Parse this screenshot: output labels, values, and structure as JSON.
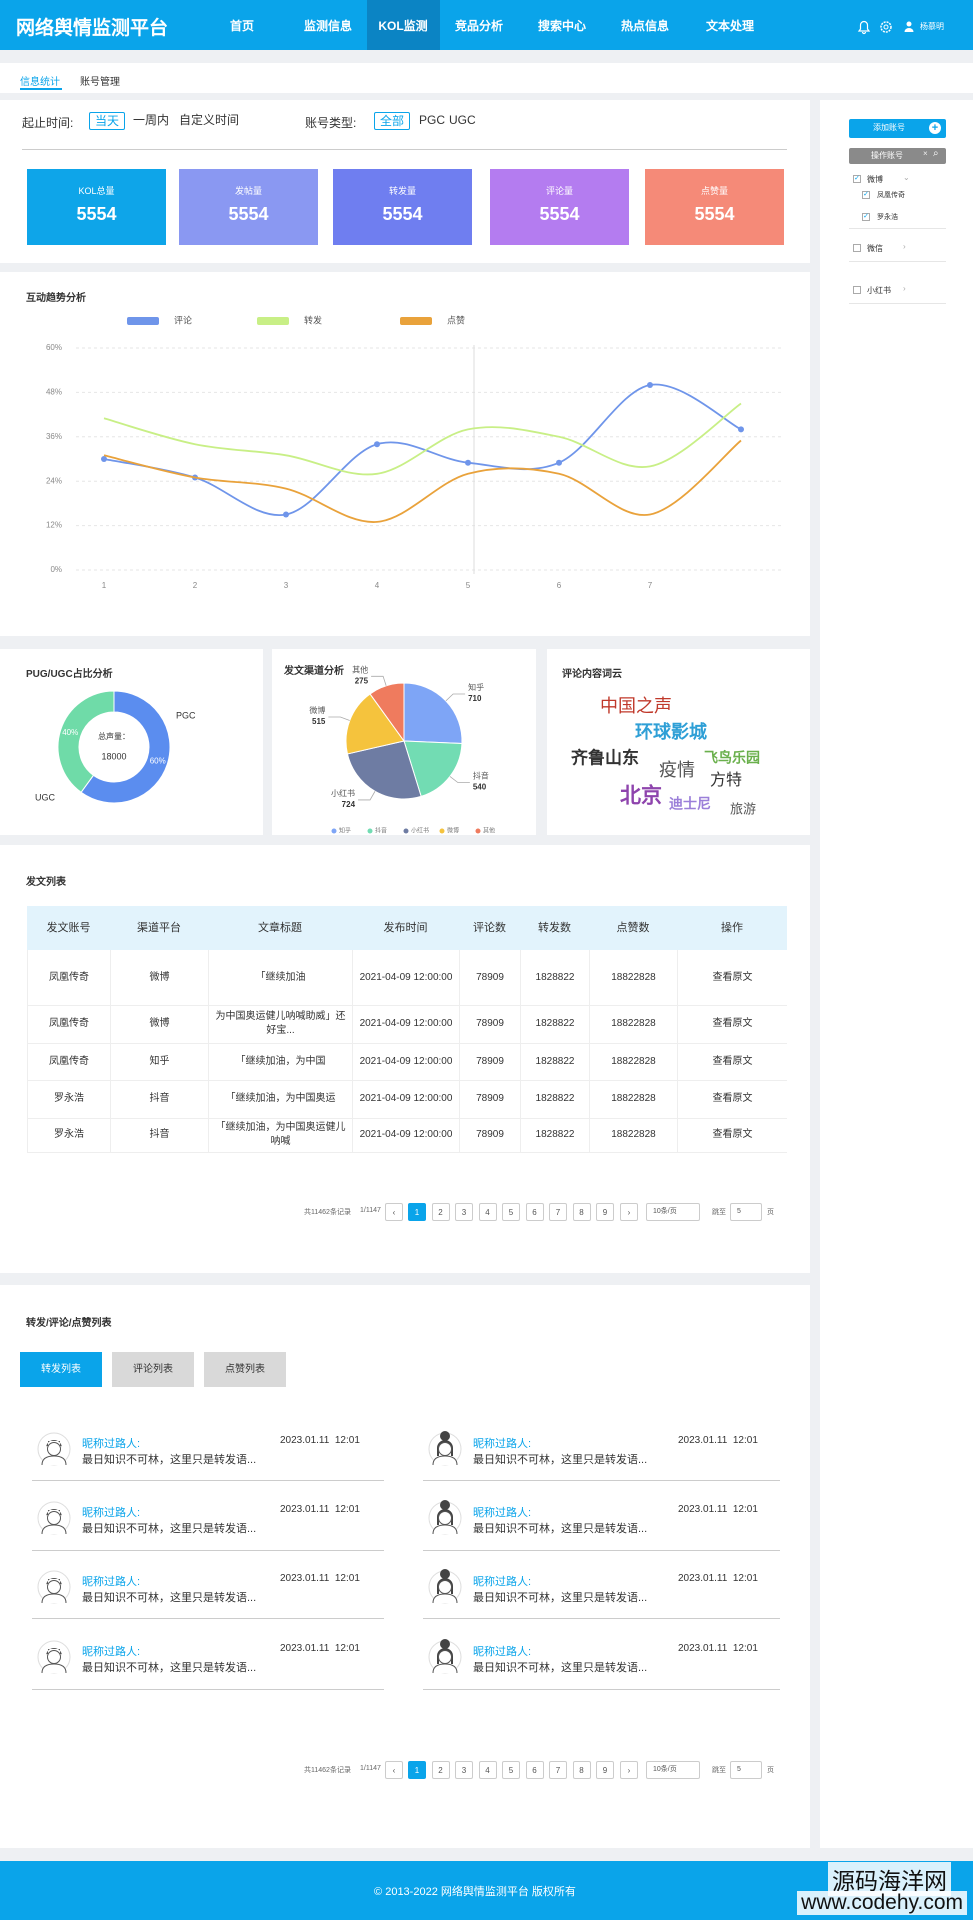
{
  "header": {
    "title": "网络舆情监测平台",
    "nav": [
      "首页",
      "监测信息",
      "KOL监测",
      "竞品分析",
      "搜索中心",
      "热点信息",
      "文本处理"
    ],
    "user": "杨慕明"
  },
  "subnav": [
    "信息统计",
    "账号管理"
  ],
  "filters": {
    "time_label": "起止时间:",
    "time_options": [
      "当天",
      "一周内",
      "自定义时间"
    ],
    "type_label": "账号类型:",
    "type_options": [
      "全部",
      "PGC",
      "UGC"
    ]
  },
  "stats": [
    {
      "label": "KOL总量",
      "value": 5554,
      "color": "#0ea5e9"
    },
    {
      "label": "发帖量",
      "value": 5554,
      "color": "#8a98f2"
    },
    {
      "label": "转发量",
      "value": 5554,
      "color": "#6f7ef0"
    },
    {
      "label": "评论量",
      "value": 5554,
      "color": "#b47cf0"
    },
    {
      "label": "点赞量",
      "value": 5554,
      "color": "#f58a78"
    }
  ],
  "chart_data": [
    {
      "type": "line",
      "title": "互动趋势分析",
      "categories": [
        "1",
        "2",
        "3",
        "4",
        "5",
        "6",
        "7",
        null
      ],
      "series": [
        {
          "name": "评论",
          "color": "#6f95ea",
          "markers": true,
          "values": [
            30,
            25,
            15,
            34,
            29,
            29,
            50,
            38
          ]
        },
        {
          "name": "转发",
          "color": "#c8ef86",
          "values": [
            41,
            34,
            31,
            26,
            38,
            36,
            28,
            45
          ]
        },
        {
          "name": "点赞",
          "color": "#e9a23b",
          "values": [
            31,
            25,
            22,
            13,
            26,
            26,
            15,
            35
          ]
        }
      ],
      "ylim": [
        0,
        60
      ],
      "yticks": [
        {
          "value": 0,
          "label": "0%"
        },
        {
          "value": 12,
          "label": "12%"
        },
        {
          "value": 24,
          "label": "24%"
        },
        {
          "value": 36,
          "label": "36%"
        },
        {
          "value": 48,
          "label": "48%"
        },
        {
          "value": 60,
          "label": "60%"
        }
      ],
      "grid": true
    },
    {
      "type": "donut",
      "title": "PUG/UGC占比分析",
      "categories": [
        "PGC",
        "UGC"
      ],
      "values": [
        60,
        40
      ],
      "value_labels": [
        "60%",
        "40%"
      ],
      "colors": [
        "#5b8def",
        "#6fdba8"
      ],
      "center_label": "总声量：",
      "center_value": 18000
    },
    {
      "type": "pie",
      "title": "发文渠道分析",
      "categories": [
        "知乎",
        "抖音",
        "小红书",
        "微博",
        "其他"
      ],
      "values": [
        710,
        540,
        724,
        515,
        275
      ],
      "colors": [
        "#7ea5f6",
        "#72dcb3",
        "#6e7ca3",
        "#f5c33d",
        "#ef7b5e"
      ]
    }
  ],
  "word_cloud": {
    "title": "评论内容词云",
    "words": [
      {
        "text": "中国之声",
        "color": "#c0392b"
      },
      {
        "text": "环球影城",
        "color": "#2e9fd6"
      },
      {
        "text": "齐鲁山东",
        "color": "#333333"
      },
      {
        "text": "飞鸟乐园",
        "color": "#6ab04c"
      },
      {
        "text": "疫情",
        "color": "#555555"
      },
      {
        "text": "方特",
        "color": "#333333"
      },
      {
        "text": "北京",
        "color": "#8e44ad"
      },
      {
        "text": "迪士尼",
        "color": "#9b7fd9"
      },
      {
        "text": "旅游",
        "color": "#555555"
      }
    ]
  },
  "post_table": {
    "title": "发文列表",
    "columns": [
      "发文账号",
      "渠道平台",
      "文章标题",
      "发布时间",
      "评论数",
      "转发数",
      "点赞数",
      "操作"
    ],
    "rows": [
      [
        "凤凰传奇",
        "微博",
        "「继续加油",
        "2021-04-09 12:00:00",
        78909,
        1828822,
        18822828,
        "查看原文"
      ],
      [
        "凤凰传奇",
        "微博",
        "为中国奥运健儿呐喊助威」还好宝...",
        "2021-04-09 12:00:00",
        78909,
        1828822,
        18822828,
        "查看原文"
      ],
      [
        "凤凰传奇",
        "知乎",
        "「继续加油，为中国",
        "2021-04-09 12:00:00",
        78909,
        1828822,
        18822828,
        "查看原文"
      ],
      [
        "罗永浩",
        "抖音",
        "「继续加油，为中国奥运",
        "2021-04-09 12:00:00",
        78909,
        1828822,
        18822828,
        "查看原文"
      ],
      [
        "罗永浩",
        "抖音",
        "「继续加油，为中国奥运健儿呐喊",
        "2021-04-09 12:00:00",
        78909,
        1828822,
        18822828,
        "查看原文"
      ]
    ]
  },
  "pagination": {
    "total": "共11462条记录",
    "page": "1/1147",
    "pages": [
      1,
      2,
      3,
      4,
      5,
      6,
      7,
      8,
      9
    ],
    "page_size": "10条/页",
    "jump": "跳至",
    "jump_value": 5,
    "unit": "页"
  },
  "activity": {
    "title": "转发/评论/点赞列表",
    "tabs": [
      "转发列表",
      "评论列表",
      "点赞列表"
    ],
    "items": [
      {
        "name": "昵称过路人:",
        "text": "最日知识不可林，这里只是转发语...",
        "time": "2023.01.11  12:01"
      },
      {
        "name": "昵称过路人:",
        "text": "最日知识不可林，这里只是转发语...",
        "time": "2023.01.11  12:01"
      },
      {
        "name": "昵称过路人:",
        "text": "最日知识不可林，这里只是转发语...",
        "time": "2023.01.11  12:01"
      },
      {
        "name": "昵称过路人:",
        "text": "最日知识不可林，这里只是转发语...",
        "time": "2023.01.11  12:01"
      },
      {
        "name": "昵称过路人:",
        "text": "最日知识不可林，这里只是转发语...",
        "time": "2023.01.11  12:01"
      },
      {
        "name": "昵称过路人:",
        "text": "最日知识不可林，这里只是转发语...",
        "time": "2023.01.11  12:01"
      },
      {
        "name": "昵称过路人:",
        "text": "最日知识不可林，这里只是转发语...",
        "time": "2023.01.11  12:01"
      },
      {
        "name": "昵称过路人:",
        "text": "最日知识不可林，这里只是转发语...",
        "time": "2023.01.11  12:01"
      }
    ]
  },
  "sidebar": {
    "add_button": "添加账号",
    "search_placeholder": "操作账号",
    "tree": [
      {
        "label": "微博",
        "children": [
          "凤凰传奇",
          "罗永浩"
        ]
      },
      {
        "label": "微信"
      },
      {
        "label": "小红书"
      }
    ]
  },
  "footer": "© 2013-2022 网络舆情监测平台 版权所有",
  "watermark": [
    "源码海洋网",
    "www.codehy.com"
  ]
}
